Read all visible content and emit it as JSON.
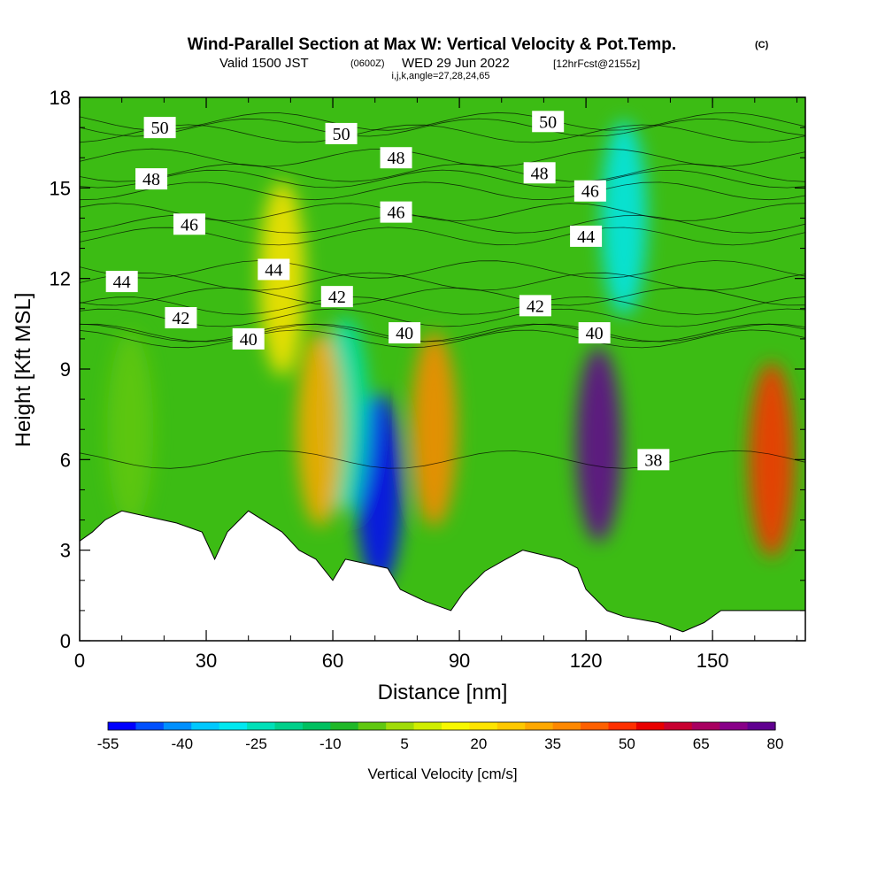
{
  "chart_data": {
    "type": "heatmap",
    "title": "Wind-Parallel Section at Max W: Vertical Velocity & Pot.Temp.",
    "copyright": "(C)",
    "subtitle_main": "Valid 1500 JST",
    "subtitle_z": "(0600Z)",
    "subtitle_date": "WED 29 Jun 2022",
    "subtitle_fcst": "[12hrFcst@2155z]",
    "subtitle_params": "i,j,k,angle=27,28,24,65",
    "xlabel": "Distance [nm]",
    "ylabel": "Height [Kft MSL]",
    "xlim": [
      0,
      172
    ],
    "ylim": [
      0,
      18
    ],
    "xticks": [
      0,
      30,
      60,
      90,
      120,
      150
    ],
    "yticks": [
      0,
      3,
      6,
      9,
      12,
      15,
      18
    ],
    "colorbar": {
      "label": "Vertical Velocity [cm/s]",
      "tick_values": [
        -55,
        -40,
        -25,
        -10,
        5,
        20,
        35,
        50,
        65,
        80
      ],
      "colors": [
        "#0000ff",
        "#0050ff",
        "#0090ff",
        "#00c8ff",
        "#00e8f0",
        "#00e0b8",
        "#00d08a",
        "#00c060",
        "#20b828",
        "#60c810",
        "#a0dc08",
        "#d0ee00",
        "#f8f800",
        "#ffe400",
        "#ffc800",
        "#ffa800",
        "#ff8800",
        "#ff6000",
        "#ff3000",
        "#e80000",
        "#c80030",
        "#a80060",
        "#880088",
        "#600090"
      ]
    },
    "velocity_features": [
      {
        "x": 71,
        "y": 5.0,
        "w": -55
      },
      {
        "x": 63,
        "y": 7.5,
        "w": -25
      },
      {
        "x": 57,
        "y": 7.0,
        "w": 30
      },
      {
        "x": 84,
        "y": 7.0,
        "w": 35
      },
      {
        "x": 123,
        "y": 6.5,
        "w": 80
      },
      {
        "x": 129,
        "y": 14.0,
        "w": -30
      },
      {
        "x": 164,
        "y": 6.0,
        "w": 50
      },
      {
        "x": 12,
        "y": 7.0,
        "w": 0
      },
      {
        "x": 48,
        "y": 12.0,
        "w": 20
      }
    ],
    "contour_labels": [
      {
        "text": "50",
        "x": 19,
        "y": 17.0
      },
      {
        "text": "48",
        "x": 17,
        "y": 15.3
      },
      {
        "text": "46",
        "x": 26,
        "y": 13.8
      },
      {
        "text": "44",
        "x": 10,
        "y": 11.9
      },
      {
        "text": "42",
        "x": 24,
        "y": 10.7
      },
      {
        "text": "40",
        "x": 40,
        "y": 10.0
      },
      {
        "text": "44",
        "x": 46,
        "y": 12.3
      },
      {
        "text": "42",
        "x": 61,
        "y": 11.4
      },
      {
        "text": "50",
        "x": 62,
        "y": 16.8
      },
      {
        "text": "48",
        "x": 75,
        "y": 16.0
      },
      {
        "text": "46",
        "x": 75,
        "y": 14.2
      },
      {
        "text": "40",
        "x": 77,
        "y": 10.2
      },
      {
        "text": "50",
        "x": 111,
        "y": 17.2
      },
      {
        "text": "48",
        "x": 109,
        "y": 15.5
      },
      {
        "text": "46",
        "x": 121,
        "y": 14.9
      },
      {
        "text": "44",
        "x": 120,
        "y": 13.4
      },
      {
        "text": "42",
        "x": 108,
        "y": 11.1
      },
      {
        "text": "40",
        "x": 122,
        "y": 10.2
      },
      {
        "text": "38",
        "x": 136,
        "y": 6.0
      }
    ],
    "terrain": [
      [
        0,
        3.3
      ],
      [
        3,
        3.6
      ],
      [
        6,
        4.0
      ],
      [
        10,
        4.3
      ],
      [
        23,
        3.9
      ],
      [
        29,
        3.6
      ],
      [
        32,
        2.7
      ],
      [
        35,
        3.6
      ],
      [
        40,
        4.3
      ],
      [
        48,
        3.6
      ],
      [
        52,
        3.0
      ],
      [
        56,
        2.7
      ],
      [
        60,
        2.0
      ],
      [
        63,
        2.7
      ],
      [
        73,
        2.4
      ],
      [
        76,
        1.7
      ],
      [
        82,
        1.3
      ],
      [
        88,
        1.0
      ],
      [
        91,
        1.6
      ],
      [
        96,
        2.3
      ],
      [
        101,
        2.7
      ],
      [
        105,
        3.0
      ],
      [
        114,
        2.7
      ],
      [
        118,
        2.4
      ],
      [
        120,
        1.7
      ],
      [
        125,
        1.0
      ],
      [
        129,
        0.8
      ],
      [
        137,
        0.6
      ],
      [
        143,
        0.3
      ],
      [
        148,
        0.6
      ],
      [
        152,
        1.0
      ],
      [
        164,
        1.0
      ],
      [
        172,
        1.0
      ]
    ]
  }
}
